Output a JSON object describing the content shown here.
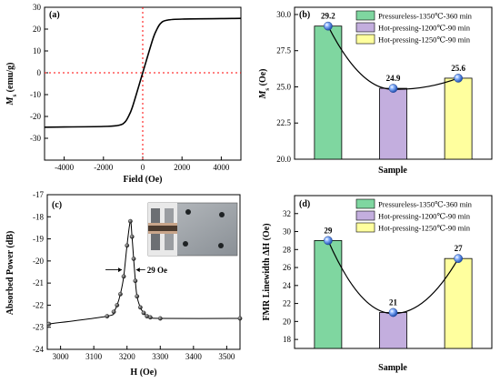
{
  "colors": {
    "green": "#7fd6a0",
    "purple": "#c3aede",
    "yellow": "#ffff9e",
    "marker": "#4a7fd4",
    "red": "#ff0000"
  },
  "chart_data": [
    {
      "id": "a",
      "panel": "(a)",
      "type": "line",
      "xlabel": "Field (Oe)",
      "ylabel_main": "M",
      "ylabel_sub": "s",
      "ylabel_unit": " (emu/g)",
      "xlim": [
        -5000,
        5000
      ],
      "ylim": [
        -40,
        30
      ],
      "xticks": [
        -4000,
        -2000,
        0,
        2000,
        4000
      ],
      "yticks": [
        -30,
        -20,
        -10,
        0,
        10,
        20,
        30
      ],
      "x": [
        -5000,
        -2000,
        -1200,
        -900,
        -700,
        -500,
        0,
        500,
        700,
        900,
        1200,
        2000,
        5000
      ],
      "y": [
        -24.9,
        -24.6,
        -24.0,
        -22.5,
        -19.5,
        -15.0,
        0,
        15.0,
        19.5,
        22.5,
        24.0,
        24.6,
        24.9
      ],
      "reference_lines": {
        "x": 0,
        "y": 0
      }
    },
    {
      "id": "b",
      "panel": "(b)",
      "type": "bar",
      "xlabel": "Sample",
      "ylabel_main": "M",
      "ylabel_sub": "s",
      "ylabel_unit": " (Oe)",
      "ylim": [
        20.0,
        30.5
      ],
      "yticks": [
        "20.0",
        "22.5",
        "25.0",
        "27.5",
        "30.0"
      ],
      "categories": [
        "Pressureless-1350℃-360 min",
        "Hot-pressing-1200℃-90 min",
        "Hot-pressing-1250℃-90 min"
      ],
      "values": [
        29.2,
        24.9,
        25.6
      ],
      "value_labels": [
        "29.2",
        "24.9",
        "25.6"
      ],
      "legend": [
        "Pressureless-1350℃-360 min",
        "Hot-pressing-1200℃-90 min",
        "Hot-pressing-1250℃-90 min"
      ],
      "legend_position": "top-right"
    },
    {
      "id": "c",
      "panel": "(c)",
      "type": "scatter",
      "xlabel": "H (Oe)",
      "ylabel": "Absorbed Power (dB)",
      "xlim": [
        2960,
        3540
      ],
      "ylim": [
        -24,
        -17
      ],
      "xticks": [
        3000,
        3100,
        3200,
        3300,
        3400,
        3500
      ],
      "yticks": [
        -24,
        -23,
        -22,
        -21,
        -20,
        -19,
        -18,
        -17
      ],
      "x": [
        2965,
        3140,
        3160,
        3170,
        3180,
        3190,
        3200,
        3210,
        3215,
        3220,
        3225,
        3230,
        3240,
        3250,
        3260,
        3270,
        3300,
        3540
      ],
      "y": [
        -22.85,
        -22.5,
        -22.3,
        -22.0,
        -21.5,
        -20.7,
        -19.3,
        -18.2,
        -18.9,
        -19.9,
        -20.9,
        -21.6,
        -22.1,
        -22.35,
        -22.5,
        -22.55,
        -22.6,
        -22.6
      ],
      "annotation": "29 Oe",
      "inset_image": "sample photo"
    },
    {
      "id": "d",
      "panel": "(d)",
      "type": "bar",
      "xlabel": "Sample",
      "ylabel": "FMR Linewidth ΔH (Oe)",
      "ylim": [
        17,
        34
      ],
      "yticks": [
        18,
        20,
        22,
        24,
        26,
        28,
        30,
        32
      ],
      "categories": [
        "Pressureless-1350℃-360 min",
        "Hot-pressing-1200℃-90 min",
        "Hot-pressing-1250℃-90 min"
      ],
      "values": [
        29,
        21,
        27
      ],
      "value_labels": [
        "29",
        "21",
        "27"
      ],
      "legend": [
        "Pressureless-1350℃-360 min",
        "Hot-pressing-1200℃-90 min",
        "Hot-pressing-1250℃-90 min"
      ],
      "legend_position": "top-right"
    }
  ]
}
